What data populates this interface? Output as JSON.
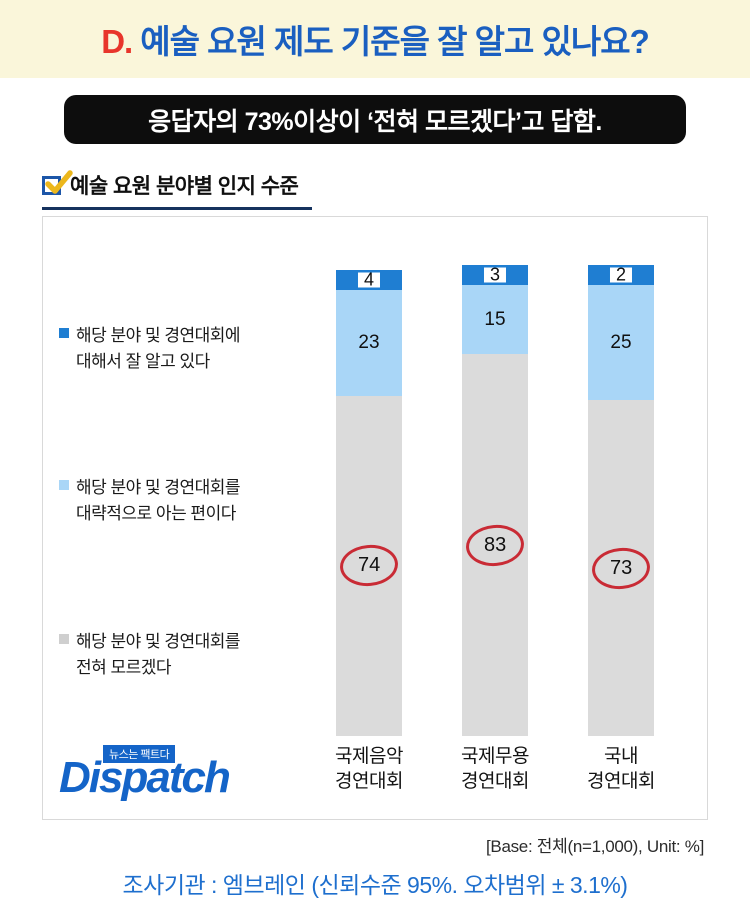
{
  "header": {
    "prefix": "D.",
    "title": "예술 요원 제도 기준을 잘 알고 있나요?",
    "key_finding": "응답자의 73%이상이 ‘전혀 모르겠다’고 답함."
  },
  "chart": {
    "title": "예술 요원 분야별 인지 수준"
  },
  "chart_data": {
    "type": "bar",
    "stacked": true,
    "title": "예술 요원 분야별 인지 수준",
    "unit": "%",
    "ylim": [
      0,
      100
    ],
    "legend_position": "left",
    "categories": [
      "국제음악\n경연대회",
      "국제무용\n경연대회",
      "국내\n경연대회"
    ],
    "series": [
      {
        "name": "해당 분야 및 경연대회에 대해서 잘 알고 있다",
        "color": "#1f7ed2",
        "values": [
          4,
          3,
          2
        ]
      },
      {
        "name": "해당 분야 및 경연대회를 대략적으로 아는 편이다",
        "color": "#a9d6f7",
        "values": [
          23,
          15,
          25
        ]
      },
      {
        "name": "해당 분야 및 경연대회를 전혀 모르겠다",
        "color": "#dbdbdb",
        "values": [
          74,
          83,
          73
        ]
      }
    ],
    "highlighted_values": [
      74,
      83,
      73
    ],
    "highlight_color": "#c92b35"
  },
  "legend": {
    "items": [
      {
        "label": "해당 분야 및 경연대회에\n대해서 잘 알고 있다",
        "color": "#1f7ed2"
      },
      {
        "label": "해당 분야 및 경연대회를\n대략적으로 아는 편이다",
        "color": "#a9d6f7"
      },
      {
        "label": "해당 분야 및 경연대회를\n전혀 모르겠다",
        "color": "#cfcfcf"
      }
    ]
  },
  "logo": {
    "tagline": "뉴스는 팩트다",
    "name": "Dispatch"
  },
  "footer": {
    "base_note": "[Base: 전체(n=1,000), Unit: %]",
    "source_note": "조사기관 : 엠브레인 (신뢰수준 95%. 오차범위 ± 3.1%)"
  },
  "colors": {
    "banner_bg": "#faf6da",
    "title_blue": "#1a5fc0",
    "title_red": "#e8352b",
    "pill_bg": "#0d0d0d",
    "highlight_red": "#c92b35",
    "source_blue": "#1e6fce",
    "logo_blue": "#1464c8"
  }
}
